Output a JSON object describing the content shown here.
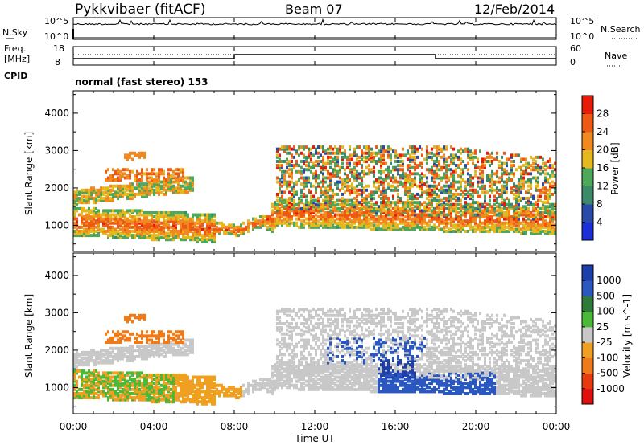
{
  "header": {
    "station": "Pykkvibaer (fitACF)",
    "beam": "Beam 07",
    "date": "12/Feb/2014"
  },
  "sky_panel": {
    "left_label": "N.Sky",
    "right_label": "N.Search",
    "left_ticks": [
      "10^5",
      "10^0"
    ],
    "right_ticks": [
      "10^5",
      "10^0"
    ]
  },
  "freq_panel": {
    "left_label_1": "Freq.",
    "left_label_2": "[MHz]",
    "right_label": "Nave",
    "left_ticks": [
      "18",
      "8"
    ],
    "right_ticks": [
      "60",
      "0"
    ],
    "cpid_label": "CPID",
    "cpid_value": "normal (fast stereo) 153"
  },
  "colors": {
    "power_scale": [
      "#1a2fd8",
      "#2a4aa8",
      "#3d8a6a",
      "#4ea85a",
      "#e6b820",
      "#f08a1e",
      "#ee5a14",
      "#e81a0a"
    ],
    "velocity_scale": [
      "#1e3ea8",
      "#2a58c0",
      "#2e7a3a",
      "#4cb83a",
      "#c8c8c8",
      "#f0a020",
      "#ee7a1a",
      "#e83a10",
      "#e01010"
    ],
    "ground_scatter": "#c8c8c8"
  },
  "chart_data": [
    {
      "type": "heatmap",
      "title": "",
      "xlabel": "",
      "ylabel": "Slant Range [km]",
      "y_ticks": [
        "1000",
        "2000",
        "3000",
        "4000"
      ],
      "ylim": [
        300,
        4600
      ],
      "colorbar_label": "Power [dB]",
      "colorbar_ticks": [
        "4",
        "8",
        "12",
        "16",
        "20",
        "24",
        "28"
      ],
      "colorbar_range": [
        0,
        30
      ]
    },
    {
      "type": "heatmap",
      "title": "",
      "xlabel": "Time UT",
      "ylabel": "Slant Range [km]",
      "y_ticks": [
        "1000",
        "2000",
        "3000",
        "4000"
      ],
      "ylim": [
        300,
        4600
      ],
      "colorbar_label": "Velocity [m s^-1]",
      "colorbar_ticks": [
        "1000",
        "500",
        "100",
        "25",
        "-25",
        "-100",
        "-500",
        "-1000"
      ],
      "colorbar_range": [
        -1000,
        1000
      ]
    }
  ],
  "time_axis": {
    "xlabel": "Time UT",
    "ticks": [
      "00:00",
      "04:00",
      "08:00",
      "12:00",
      "16:00",
      "20:00",
      "00:00"
    ]
  }
}
